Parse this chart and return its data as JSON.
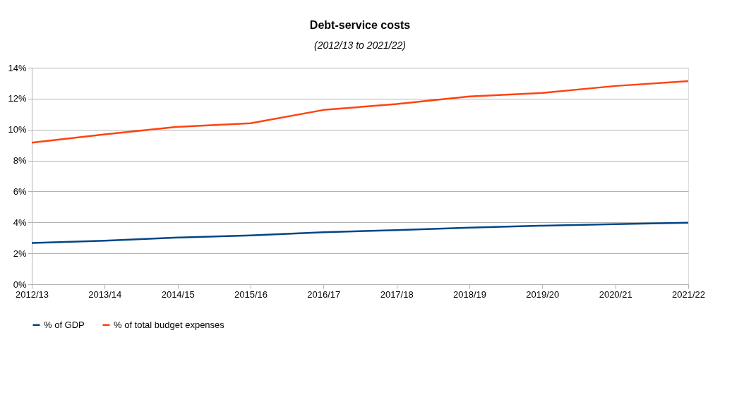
{
  "chart_data": {
    "type": "line",
    "title": "Debt-service costs",
    "subtitle": "(2012/13 to 2021/22)",
    "categories": [
      "2012/13",
      "2013/14",
      "2014/15",
      "2015/16",
      "2016/17",
      "2017/18",
      "2018/19",
      "2019/20",
      "2020/21",
      "2021/22"
    ],
    "series": [
      {
        "name": "% of GDP",
        "color": "#004586",
        "values": [
          2.67,
          2.82,
          3.02,
          3.16,
          3.36,
          3.5,
          3.66,
          3.79,
          3.89,
          3.98
        ]
      },
      {
        "name": "% of total budget expenses",
        "color": "#ff420e",
        "values": [
          9.16,
          9.69,
          10.18,
          10.41,
          11.27,
          11.65,
          12.14,
          12.37,
          12.82,
          13.13
        ]
      }
    ],
    "ylim": [
      0,
      14
    ],
    "yticks": [
      {
        "value": 0,
        "label": "0%"
      },
      {
        "value": 2,
        "label": "2%"
      },
      {
        "value": 4,
        "label": "4%"
      },
      {
        "value": 6,
        "label": "6%"
      },
      {
        "value": 8,
        "label": "8%"
      },
      {
        "value": 10,
        "label": "10%"
      },
      {
        "value": 12,
        "label": "12%"
      },
      {
        "value": 14,
        "label": "14%"
      }
    ],
    "grid": "y",
    "legend": "bottom",
    "marker": "none",
    "line_style": "solid"
  }
}
